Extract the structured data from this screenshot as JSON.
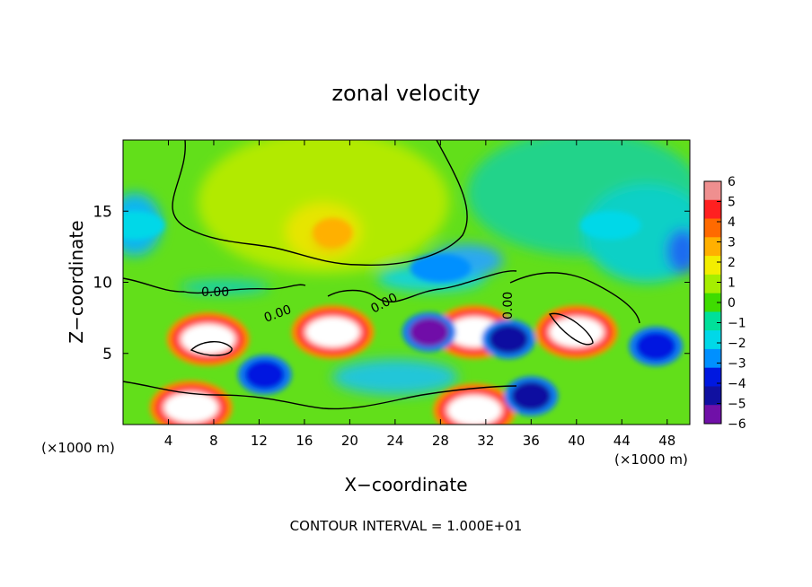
{
  "chart_data": {
    "type": "heatmap",
    "title": "zonal velocity",
    "xlabel": "X−coordinate",
    "ylabel": "Z−coordinate",
    "x_unit": "(×1000 m)",
    "x_unit_right": "(×1000 m)",
    "xlim": [
      0,
      50
    ],
    "ylim": [
      0,
      20
    ],
    "x_ticks": [
      4,
      8,
      12,
      16,
      20,
      24,
      28,
      32,
      36,
      40,
      44,
      48
    ],
    "y_ticks": [
      5,
      10,
      15
    ],
    "colorbar": {
      "min": -6,
      "max": 6,
      "ticks": [
        6,
        5,
        4,
        3,
        2,
        1,
        0,
        -1,
        -2,
        -3,
        -4,
        -5,
        -6
      ],
      "tick_labels": [
        "6",
        "5",
        "4",
        "3",
        "2",
        "1",
        "0",
        "−1",
        "−2",
        "−3",
        "−4",
        "−5",
        "−6"
      ],
      "colors": [
        "#ef8f8f",
        "#ff2020",
        "#ff6a00",
        "#ffb000",
        "#f3ee00",
        "#a6ee00",
        "#3fdc00",
        "#00e09a",
        "#00d8e8",
        "#0090ff",
        "#0018e0",
        "#1010a0",
        "#7010a8"
      ]
    },
    "contour_labels": [
      "0.00",
      "0.00",
      "0.00",
      "0.00"
    ],
    "annotation": "CONTOUR INTERVAL = 1.000E+01",
    "features": [
      {
        "x": 18.5,
        "z": 13.5,
        "value": 3
      },
      {
        "x": 7.5,
        "z": 6.0,
        "value": 8
      },
      {
        "x": 18.5,
        "z": 6.5,
        "value": 8
      },
      {
        "x": 31.0,
        "z": 6.5,
        "value": 8
      },
      {
        "x": 40.0,
        "z": 6.5,
        "value": 8
      },
      {
        "x": 6.0,
        "z": 1.2,
        "value": 8
      },
      {
        "x": 31.0,
        "z": 1.0,
        "value": 7
      },
      {
        "x": 27.0,
        "z": 6.5,
        "value": -6
      },
      {
        "x": 34.0,
        "z": 6.0,
        "value": -5
      },
      {
        "x": 12.5,
        "z": 3.5,
        "value": -4
      },
      {
        "x": 36.0,
        "z": 2.0,
        "value": -5
      },
      {
        "x": 47.0,
        "z": 5.5,
        "value": -4
      },
      {
        "x": 1.0,
        "z": 14.0,
        "value": -2
      },
      {
        "x": 43.0,
        "z": 14.0,
        "value": -2
      },
      {
        "x": 28.0,
        "z": 11.0,
        "value": -2.5
      }
    ]
  }
}
